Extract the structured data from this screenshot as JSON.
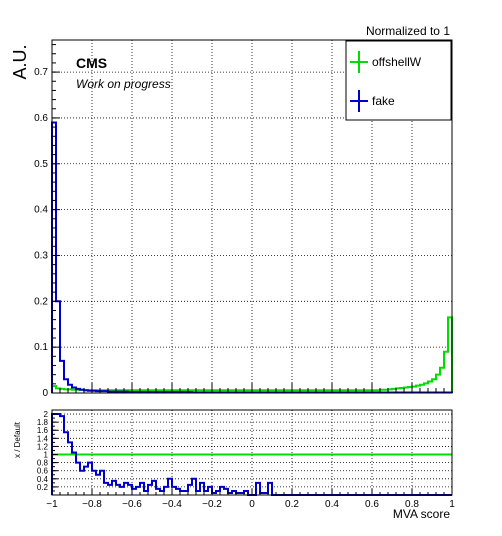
{
  "header": {
    "normalization_note": "Normalized to 1",
    "experiment": "CMS",
    "subtitle": "Work on progress"
  },
  "colors": {
    "signal": "#00dd00",
    "background": "#0000cc",
    "reference_line": "#00dd00"
  },
  "chart_data": [
    {
      "type": "line",
      "style": "step-histogram",
      "ylabel": "A.U.",
      "xlim": [
        -1,
        1
      ],
      "ylim": [
        0,
        0.77
      ],
      "grid": true,
      "legend_placement": "top-right",
      "bins": {
        "n": 100,
        "min": -1,
        "max": 1
      },
      "x_ticks": [
        -1,
        -0.8,
        -0.6,
        -0.4,
        -0.2,
        0,
        0.2,
        0.4,
        0.6,
        0.8,
        1
      ],
      "x_tick_labels": [
        "−1",
        "−0.8",
        "−0.6",
        "−0.4",
        "−0.2",
        "0",
        "0.2",
        "0.4",
        "0.6",
        "0.8",
        "1"
      ],
      "y_ticks": [
        0,
        0.1,
        0.2,
        0.3,
        0.4,
        0.5,
        0.6,
        0.7
      ],
      "y_tick_labels": [
        "0",
        "0.1",
        "0.2",
        "0.3",
        "0.4",
        "0.5",
        "0.6",
        "0.7"
      ],
      "series": [
        {
          "name": "offshellW",
          "values": [
            0.015,
            0.01,
            0.009,
            0.008,
            0.008,
            0.007,
            0.007,
            0.007,
            0.006,
            0.006,
            0.006,
            0.006,
            0.006,
            0.006,
            0.006,
            0.006,
            0.006,
            0.006,
            0.006,
            0.006,
            0.006,
            0.006,
            0.006,
            0.006,
            0.006,
            0.006,
            0.006,
            0.006,
            0.006,
            0.006,
            0.006,
            0.006,
            0.006,
            0.006,
            0.006,
            0.006,
            0.006,
            0.006,
            0.006,
            0.006,
            0.006,
            0.006,
            0.006,
            0.006,
            0.006,
            0.006,
            0.006,
            0.006,
            0.006,
            0.006,
            0.006,
            0.006,
            0.006,
            0.006,
            0.006,
            0.006,
            0.006,
            0.006,
            0.006,
            0.006,
            0.006,
            0.006,
            0.006,
            0.006,
            0.006,
            0.006,
            0.006,
            0.006,
            0.006,
            0.006,
            0.006,
            0.006,
            0.006,
            0.006,
            0.006,
            0.006,
            0.006,
            0.006,
            0.006,
            0.006,
            0.006,
            0.006,
            0.007,
            0.007,
            0.008,
            0.009,
            0.01,
            0.011,
            0.012,
            0.013,
            0.014,
            0.016,
            0.018,
            0.021,
            0.025,
            0.03,
            0.04,
            0.055,
            0.09,
            0.165
          ]
        },
        {
          "name": "fake",
          "values": [
            0.59,
            0.2,
            0.07,
            0.03,
            0.018,
            0.012,
            0.009,
            0.007,
            0.006,
            0.005,
            0.005,
            0.004,
            0.004,
            0.004,
            0.003,
            0.003,
            0.003,
            0.003,
            0.003,
            0.002,
            0.002,
            0.002,
            0.002,
            0.002,
            0.002,
            0.002,
            0.002,
            0.002,
            0.002,
            0.002,
            0.002,
            0.002,
            0.002,
            0.002,
            0.002,
            0.001,
            0.001,
            0.001,
            0.001,
            0.001,
            0.001,
            0.001,
            0.001,
            0.001,
            0.001,
            0.001,
            0.001,
            0.001,
            0.001,
            0.001,
            0.001,
            0.001,
            0.001,
            0.001,
            0.001,
            0.001,
            0.001,
            0.001,
            0.001,
            0.001,
            0.001,
            0.001,
            0.001,
            0.001,
            0.001,
            0.001,
            0.001,
            0.001,
            0.001,
            0.001,
            0.001,
            0.001,
            0.001,
            0.001,
            0.001,
            0.001,
            0.001,
            0.001,
            0.001,
            0.001,
            0.001,
            0.001,
            0.001,
            0.001,
            0.001,
            0.001,
            0.001,
            0.001,
            0.001,
            0.001,
            0.001,
            0.001,
            0.001,
            0.001,
            0.001,
            0.001,
            0.001,
            0.001,
            0.001,
            0.001
          ]
        }
      ]
    },
    {
      "type": "line",
      "style": "step-histogram",
      "xlabel": "MVA score",
      "ylabel": "x / Default",
      "xlim": [
        -1,
        1
      ],
      "ylim": [
        0,
        2.1
      ],
      "grid": true,
      "x_ticks": [
        -1,
        -0.8,
        -0.6,
        -0.4,
        -0.2,
        0,
        0.2,
        0.4,
        0.6,
        0.8,
        1
      ],
      "x_tick_labels": [
        "−1",
        "−0.8",
        "−0.6",
        "−0.4",
        "−0.2",
        "0",
        "0.2",
        "0.4",
        "0.6",
        "0.8",
        "1"
      ],
      "y_ticks": [
        0.2,
        0.4,
        0.6,
        0.8,
        1,
        1.2,
        1.4,
        1.6,
        1.8,
        2
      ],
      "y_tick_labels": [
        "0.2",
        "0.4",
        "0.6",
        "0.8",
        "1",
        "1.2",
        "1.4",
        "1.6",
        "1.8",
        "2"
      ],
      "reference_value": 1,
      "series": [
        {
          "name": "fake",
          "values": [
            2.0,
            2.0,
            1.95,
            1.55,
            1.3,
            1.05,
            0.8,
            0.6,
            0.7,
            0.8,
            0.6,
            0.5,
            0.6,
            0.3,
            0.25,
            0.35,
            0.25,
            0.2,
            0.3,
            0.25,
            0.15,
            0.2,
            0.3,
            0.1,
            0.25,
            0.35,
            0.15,
            0.1,
            0.2,
            0.4,
            0.2,
            0.15,
            0.1,
            0.1,
            0.25,
            0.4,
            0.1,
            0.3,
            0.1,
            0.2,
            0.05,
            0.1,
            0.2,
            0.15,
            0.05,
            0.1,
            0.05,
            0.05,
            0.1,
            0.0,
            0.0,
            0.3,
            0.05,
            0.05,
            0.3,
            0.0,
            0.0,
            0.0,
            0.0,
            0.0,
            0.0,
            0.0,
            0.0,
            0.0,
            0.0,
            0.0,
            0.0,
            0.0,
            0.0,
            0.0,
            0.0,
            0.0,
            0.0,
            0.0,
            0.0,
            0.0,
            0.0,
            0.0,
            0.0,
            0.0,
            0.0,
            0.0,
            0.0,
            0.0,
            0.0,
            0.0,
            0.0,
            0.0,
            0.0,
            0.0,
            0.0,
            0.0,
            0.0,
            0.0,
            0.0,
            0.0,
            0.0,
            0.0,
            0.0,
            0.0
          ]
        }
      ]
    }
  ]
}
